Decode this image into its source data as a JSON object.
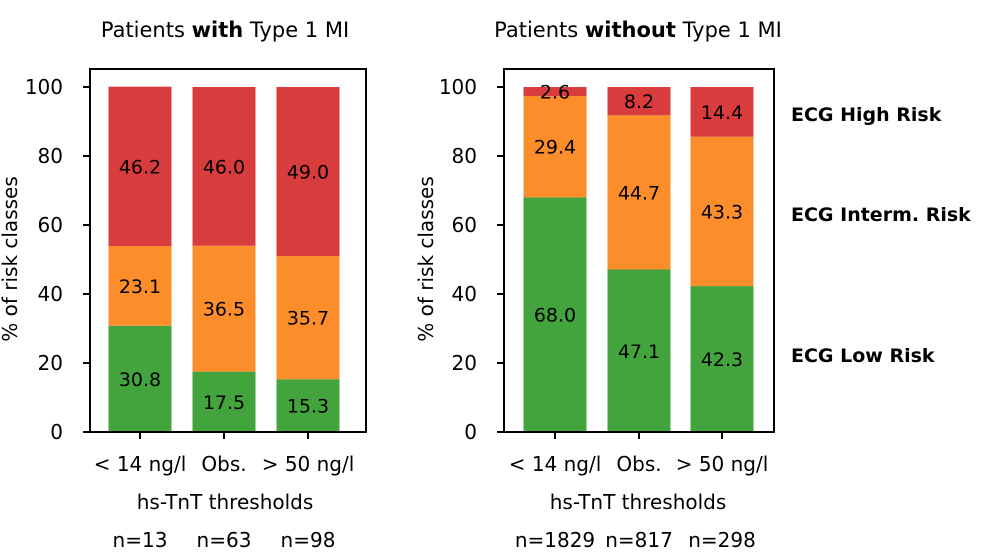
{
  "chart_data": [
    {
      "type": "bar",
      "stacked": true,
      "title_parts": [
        "Patients ",
        "with",
        " Type 1 MI"
      ],
      "xlabel": "hs-TnT thresholds",
      "ylabel": "% of risk classes",
      "ylim": [
        0,
        100
      ],
      "yticks": [
        "0",
        "20",
        "40",
        "60",
        "80",
        "100"
      ],
      "categories": [
        "< 14 ng/l",
        "Obs.",
        "> 50 ng/l"
      ],
      "counts": [
        "n=13",
        "n=63",
        "n=98"
      ],
      "series": [
        {
          "name": "ECG Low Risk",
          "color": "#43a43d",
          "values": [
            30.8,
            17.5,
            15.3
          ],
          "labels": [
            "30.8",
            "17.5",
            "15.3"
          ]
        },
        {
          "name": "ECG Interm. Risk",
          "color": "#fc8d2b",
          "values": [
            23.1,
            36.5,
            35.7
          ],
          "labels": [
            "23.1",
            "36.5",
            "35.7"
          ]
        },
        {
          "name": "ECG High Risk",
          "color": "#d83c3d",
          "values": [
            46.2,
            46.0,
            49.0
          ],
          "labels": [
            "46.2",
            "46.0",
            "49.0"
          ]
        }
      ],
      "grid": false
    },
    {
      "type": "bar",
      "stacked": true,
      "title_parts": [
        "Patients ",
        "without",
        " Type 1 MI"
      ],
      "xlabel": "hs-TnT thresholds",
      "ylabel": "% of risk classes",
      "ylim": [
        0,
        100
      ],
      "yticks": [
        "0",
        "20",
        "40",
        "60",
        "80",
        "100"
      ],
      "categories": [
        "< 14 ng/l",
        "Obs.",
        "> 50 ng/l"
      ],
      "counts": [
        "n=1829",
        "n=817",
        "n=298"
      ],
      "series": [
        {
          "name": "ECG Low Risk",
          "color": "#43a43d",
          "values": [
            68.0,
            47.1,
            42.3
          ],
          "labels": [
            "68.0",
            "47.1",
            "42.3"
          ]
        },
        {
          "name": "ECG Interm. Risk",
          "color": "#fc8d2b",
          "values": [
            29.4,
            44.7,
            43.3
          ],
          "labels": [
            "29.4",
            "44.7",
            "43.3"
          ]
        },
        {
          "name": "ECG High Risk",
          "color": "#d83c3d",
          "values": [
            2.6,
            8.2,
            14.4
          ],
          "labels": [
            "2.6",
            "8.2",
            "14.4"
          ]
        }
      ],
      "grid": false
    }
  ],
  "legend": {
    "placement": "right",
    "items": [
      {
        "label": "ECG High Risk",
        "color": "#d83c3d"
      },
      {
        "label": "ECG Interm. Risk",
        "color": "#fc8d2b"
      },
      {
        "label": "ECG Low Risk",
        "color": "#43a43d"
      }
    ]
  }
}
